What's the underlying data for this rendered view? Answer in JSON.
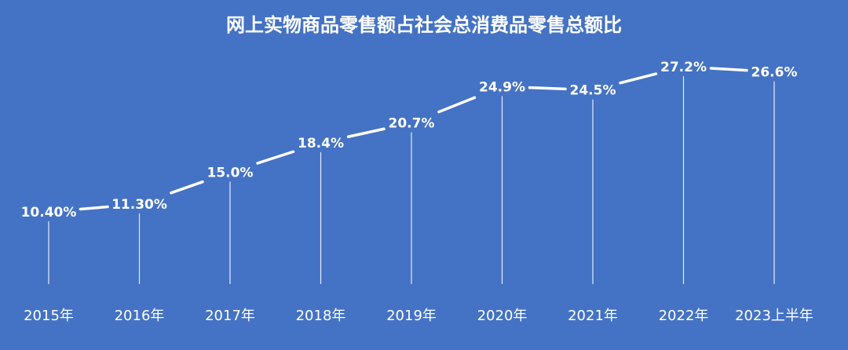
{
  "chart_data": {
    "type": "line",
    "title": "网上实物商品零售额占社会总消费品零售总额比",
    "xlabel": "",
    "ylabel": "",
    "categories": [
      "2015年",
      "2016年",
      "2017年",
      "2018年",
      "2019年",
      "2020年",
      "2021年",
      "2022年",
      "2023上半年"
    ],
    "series": [
      {
        "values": [
          10.4,
          11.3,
          15.0,
          18.4,
          20.7,
          24.9,
          24.5,
          27.2,
          26.6
        ],
        "labels": [
          "10.40%",
          "11.30%",
          "15.0%",
          "18.4%",
          "20.7%",
          "24.9%",
          "24.5%",
          "27.2%",
          "26.6%"
        ]
      }
    ],
    "ylim": [
      0,
      30
    ],
    "grid": false,
    "legend": "none",
    "drop_lines": true,
    "colors": {
      "background": "#4472c4",
      "line": "#ffffff",
      "text": "#ffffff"
    }
  }
}
